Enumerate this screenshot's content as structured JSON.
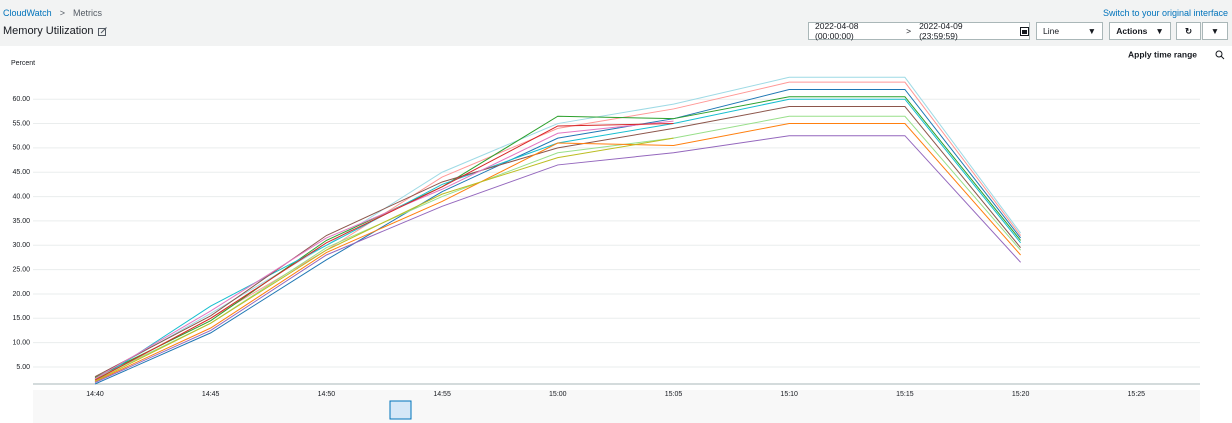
{
  "header": {
    "breadcrumb": [
      "CloudWatch",
      "Metrics"
    ],
    "switch_link": "Switch to your original interface",
    "title": "Memory Utilization"
  },
  "controls": {
    "start": "2022-04-08 (00:00:00)",
    "end": "2022-04-09 (23:59:59)",
    "view": "Line",
    "actions": "Actions"
  },
  "apply": "Apply time range",
  "chart_data": {
    "type": "line",
    "y_label": "Percent",
    "categories": [
      "14:40",
      "14:45",
      "14:50",
      "14:55",
      "15:00",
      "15:05",
      "15:10",
      "15:15",
      "15:20",
      "15:25"
    ],
    "series": [
      {
        "color": "#9edae5",
        "values": [
          2.5,
          16,
          30,
          45,
          55,
          59,
          64.5,
          64.5,
          32.5,
          null
        ]
      },
      {
        "color": "#ff9896",
        "values": [
          2.2,
          15,
          29,
          44,
          54,
          58,
          63.5,
          63.5,
          32,
          null
        ]
      },
      {
        "color": "#1f77b4",
        "values": [
          1.5,
          12,
          27,
          41,
          52,
          56,
          62,
          62,
          31.5,
          null
        ]
      },
      {
        "color": "#2ca02c",
        "values": [
          2.8,
          14.5,
          31,
          42,
          56.5,
          56,
          60.5,
          60.5,
          31,
          null
        ]
      },
      {
        "color": "#17becf",
        "values": [
          2,
          17.5,
          30,
          42.5,
          51,
          55,
          60,
          60,
          30.5,
          null
        ]
      },
      {
        "color": "#8c564b",
        "values": [
          3,
          15.5,
          32,
          43,
          50,
          54,
          58.5,
          58.5,
          29.5,
          null
        ]
      },
      {
        "color": "#98df8a",
        "values": [
          2.5,
          14,
          29.5,
          40,
          49,
          52,
          56.5,
          56.5,
          29,
          null
        ]
      },
      {
        "color": "#ff7f0e",
        "values": [
          2,
          13,
          28.5,
          39,
          51,
          50.5,
          55,
          55,
          28,
          null
        ]
      },
      {
        "color": "#9467bd",
        "values": [
          1.8,
          12.5,
          28,
          38,
          46.5,
          49,
          52.5,
          52.5,
          26.5,
          null
        ]
      },
      {
        "color": "#e377c2",
        "values": [
          2.6,
          16.5,
          31.5,
          41.5,
          53,
          55.5,
          null,
          null,
          null,
          null
        ]
      },
      {
        "color": "#d62728",
        "values": [
          2.3,
          15,
          30.5,
          42,
          54.5,
          55,
          null,
          null,
          null,
          null
        ]
      },
      {
        "color": "#bcbd22",
        "values": [
          2.1,
          14,
          29,
          40.5,
          48,
          52,
          null,
          null,
          null,
          null
        ]
      }
    ],
    "ylim": [
      1.5,
      66
    ],
    "yticks": [
      {
        "value": 5,
        "label": "5.00"
      },
      {
        "value": 10,
        "label": "10.00"
      },
      {
        "value": 15,
        "label": "15.00"
      },
      {
        "value": 20,
        "label": "20.00"
      },
      {
        "value": 25,
        "label": "25.00"
      },
      {
        "value": 30,
        "label": "30.00"
      },
      {
        "value": 35,
        "label": "35.00"
      },
      {
        "value": 40,
        "label": "40.00"
      },
      {
        "value": 45,
        "label": "45.00"
      },
      {
        "value": 50,
        "label": "50.00"
      },
      {
        "value": 55,
        "label": "55.00"
      },
      {
        "value": 60,
        "label": "60.00"
      }
    ],
    "grid": true
  }
}
